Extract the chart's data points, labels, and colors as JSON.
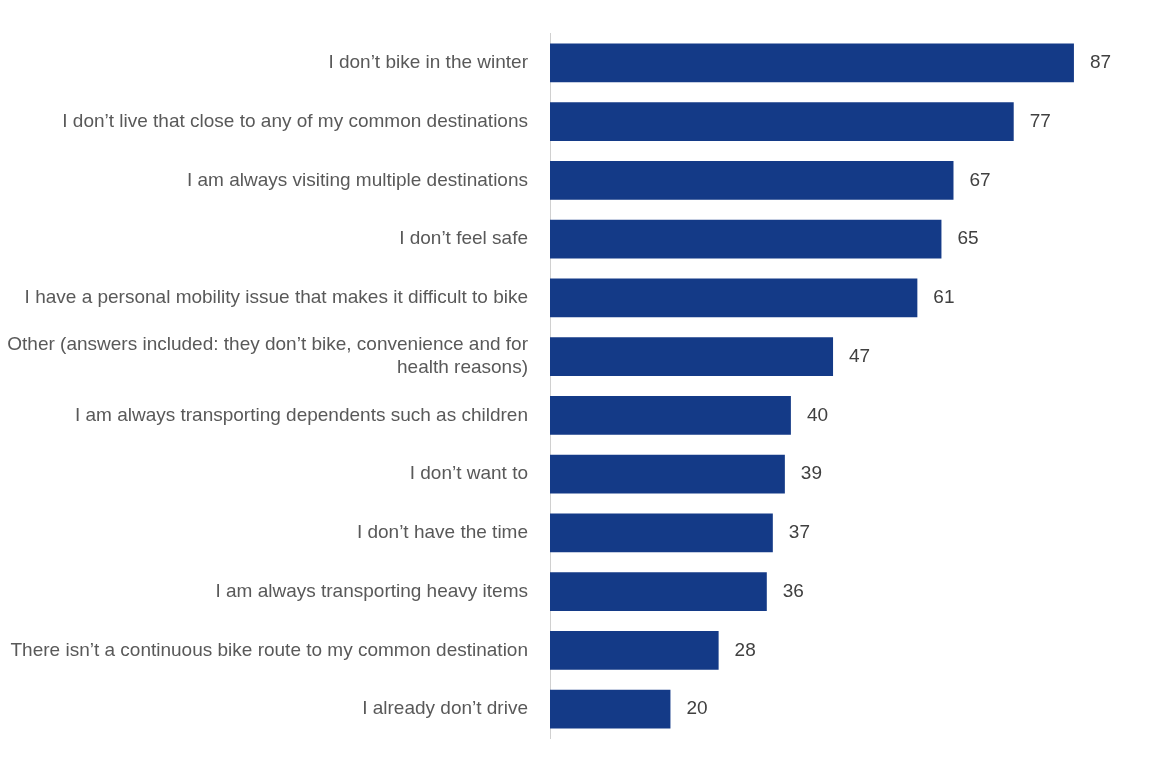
{
  "chart_data": {
    "type": "bar",
    "orientation": "horizontal",
    "categories": [
      "I don’t bike in the winter",
      "I don’t live that close to any of my common destinations",
      "I am always visiting multiple destinations",
      "I don’t feel safe",
      "I have a personal mobility issue that makes it difficult to bike",
      "Other (answers included: they don’t bike, convenience and for health reasons)",
      "I am always transporting dependents such as children",
      "I don’t want to",
      "I don’t have the time",
      "I am always transporting heavy items",
      "There isn’t a continuous bike route to my common destination",
      "I already don’t drive"
    ],
    "values": [
      87,
      77,
      67,
      65,
      61,
      47,
      40,
      39,
      37,
      36,
      28,
      20
    ],
    "color": "#143a87",
    "data_labels": true,
    "grid": false,
    "legend": false,
    "tick_labels": "y"
  }
}
